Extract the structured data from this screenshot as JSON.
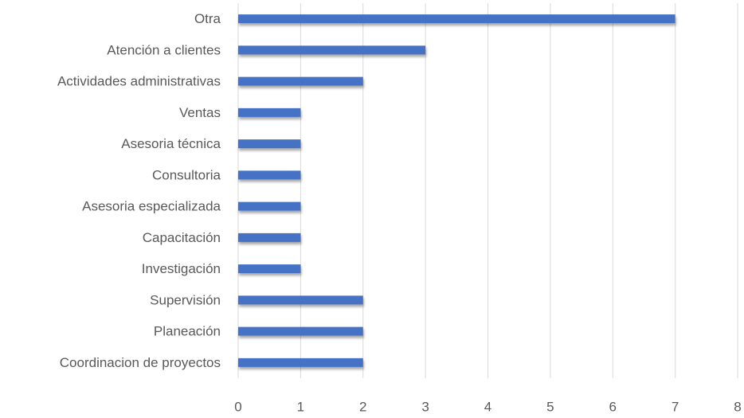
{
  "chart_data": {
    "type": "bar",
    "orientation": "horizontal",
    "categories": [
      "Otra",
      "Atención a clientes",
      "Actividades administrativas",
      "Ventas",
      "Asesoria técnica",
      "Consultoria",
      "Asesoria especializada",
      "Capacitación",
      "Investigación",
      "Supervisión",
      "Planeación",
      "Coordinacion de proyectos"
    ],
    "values": [
      7,
      3,
      2,
      1,
      1,
      1,
      1,
      1,
      1,
      2,
      2,
      2
    ],
    "color": "#4472c4",
    "xlim": [
      0,
      8
    ],
    "xticks": [
      0,
      1,
      2,
      3,
      4,
      5,
      6,
      7,
      8
    ],
    "grid": true
  }
}
